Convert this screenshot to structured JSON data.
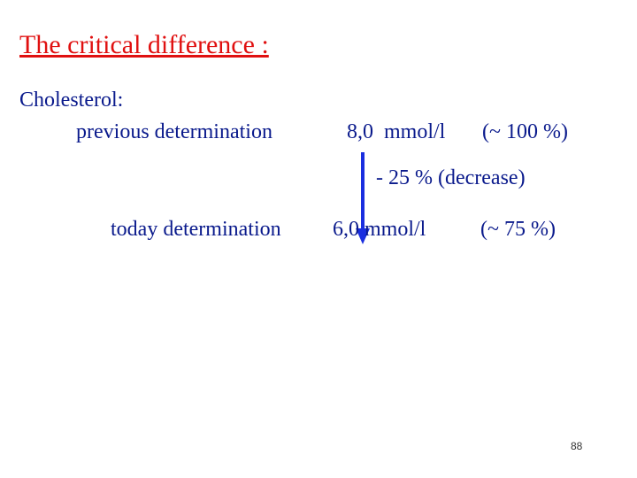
{
  "title": "The critical difference :",
  "label": "Cholesterol:",
  "previous": {
    "name": "previous determination",
    "value": "8,0  mmol/l",
    "percent": "(~ 100 %)"
  },
  "change": "- 25 % (decrease)",
  "today": {
    "name": "today determination",
    "value": "6,0 mmol/l",
    "percent": "(~ 75 %)"
  },
  "page_number": "88"
}
